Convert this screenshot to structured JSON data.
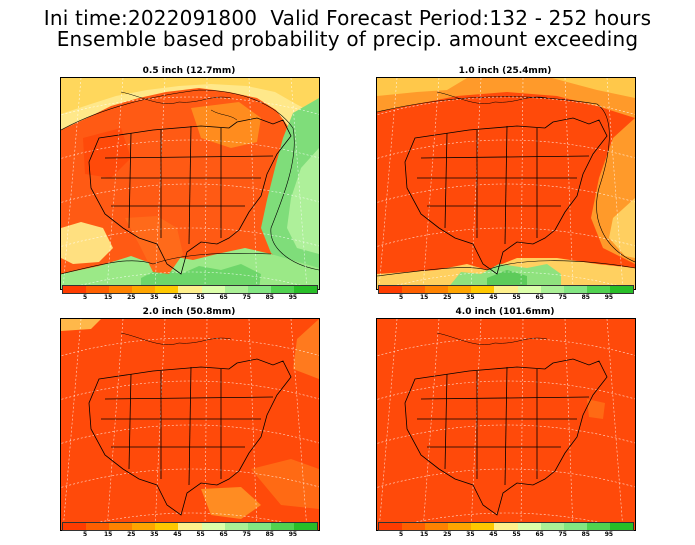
{
  "header": {
    "line1": "Ini time:2022091800  Valid Forecast Period:132 - 252 hours",
    "line2": "Ensemble based probability of precip. amount exceeding"
  },
  "panels": [
    {
      "title": "0.5 inch (12.7mm)",
      "map_variant": "low-threshold"
    },
    {
      "title": "1.0 inch (25.4mm)",
      "map_variant": "mid-threshold"
    },
    {
      "title": "2.0 inch (50.8mm)",
      "map_variant": "high-threshold"
    },
    {
      "title": "4.0 inch (101.6mm)",
      "map_variant": "highest-threshold"
    }
  ],
  "colorbar": {
    "labels": [
      "5",
      "15",
      "25",
      "35",
      "45",
      "55",
      "65",
      "75",
      "85",
      "95"
    ],
    "colors": [
      "#ff3c00",
      "#ff5f00",
      "#ff8200",
      "#ffa500",
      "#ffc800",
      "#fff08c",
      "#dcffaa",
      "#aaf096",
      "#82e682",
      "#50d250",
      "#28be28"
    ]
  }
}
